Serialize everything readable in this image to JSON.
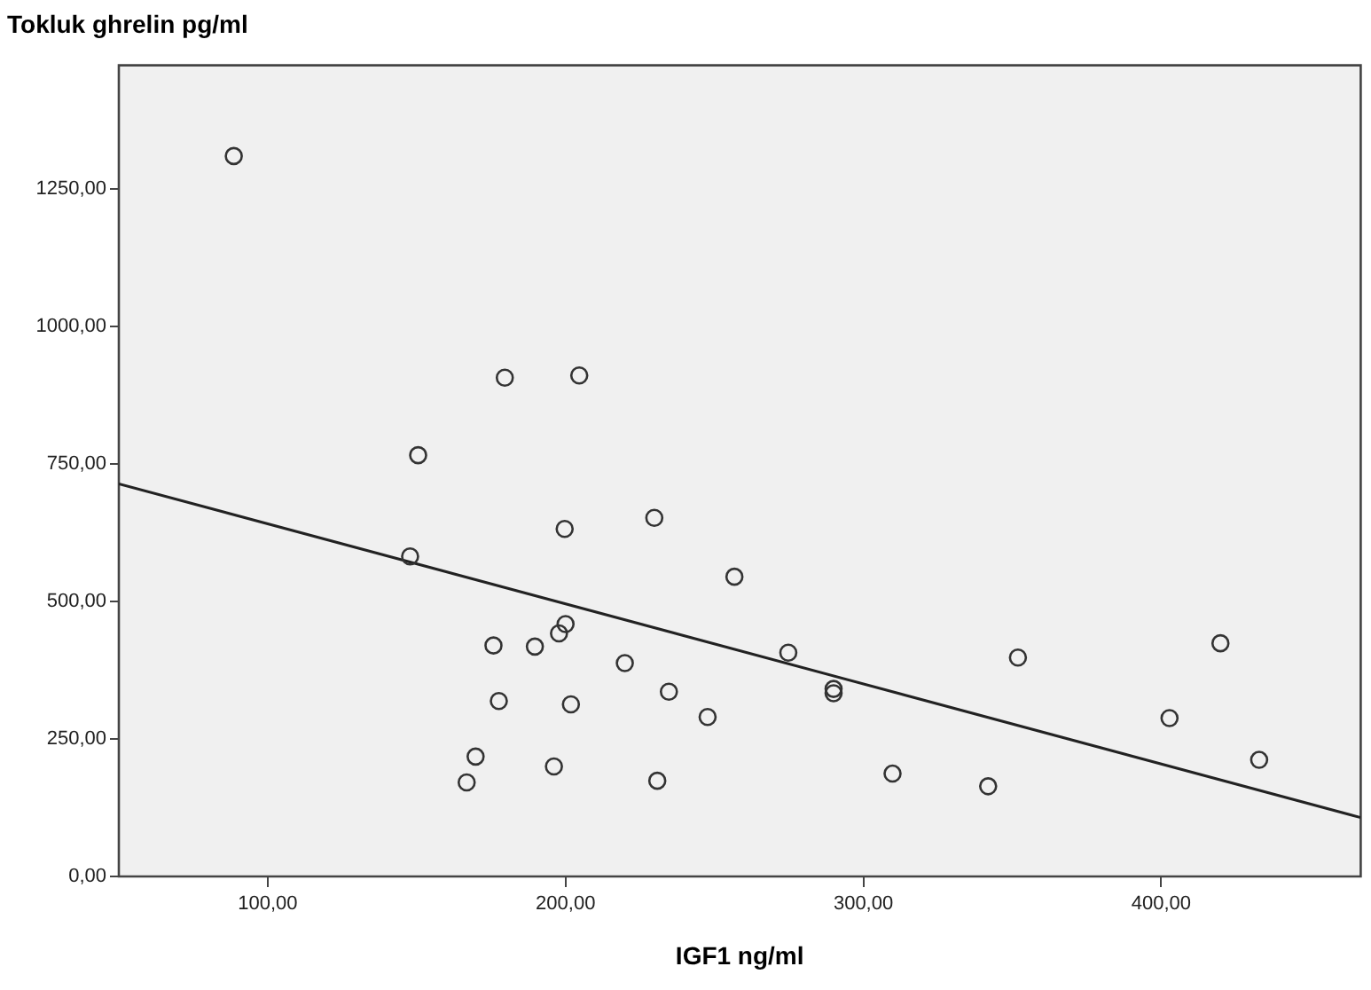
{
  "chart_data": {
    "type": "scatter",
    "title": "Tokluk ghrelin pg/ml",
    "xlabel": "IGF1 ng/ml",
    "xlim": [
      50,
      467
    ],
    "xticks": [
      {
        "value": 100,
        "label": "100,00"
      },
      {
        "value": 200,
        "label": "200,00"
      },
      {
        "value": 300,
        "label": "300,00"
      },
      {
        "value": 400,
        "label": "400,00"
      }
    ],
    "ylim": [
      0,
      1475
    ],
    "yticks": [
      {
        "value": 0,
        "label": "0,00"
      },
      {
        "value": 250,
        "label": "250,00"
      },
      {
        "value": 500,
        "label": "500,00"
      },
      {
        "value": 750,
        "label": "750,00"
      },
      {
        "value": 1000,
        "label": "1000,00"
      },
      {
        "value": 1250,
        "label": "1250,00"
      }
    ],
    "grid": false,
    "legend": false,
    "marker": "circle",
    "series": [
      {
        "color": "#333333",
        "x": [
          88.6,
          179.6,
          204.6,
          150.5,
          199.7,
          229.8,
          147.8,
          175.8,
          189.7,
          197.8,
          200,
          219.9,
          177.6,
          201.8,
          234.7,
          169.8,
          166.8,
          196.1,
          230.8,
          247.7,
          256.7,
          274.8,
          290,
          290,
          309.8,
          341.9,
          351.9,
          402.8,
          419.9,
          432.9
        ],
        "values": [
          1310,
          907,
          911,
          766,
          632,
          652,
          582,
          420,
          418,
          442,
          459,
          388,
          319,
          313,
          336,
          218,
          171,
          200,
          174,
          290,
          545,
          407,
          341,
          333,
          187,
          164,
          398,
          288,
          424,
          212
        ]
      },
      {
        "type": "line",
        "color": "#222222",
        "marker": "none",
        "x": [
          50,
          467
        ],
        "values": [
          714,
          107
        ]
      }
    ]
  }
}
